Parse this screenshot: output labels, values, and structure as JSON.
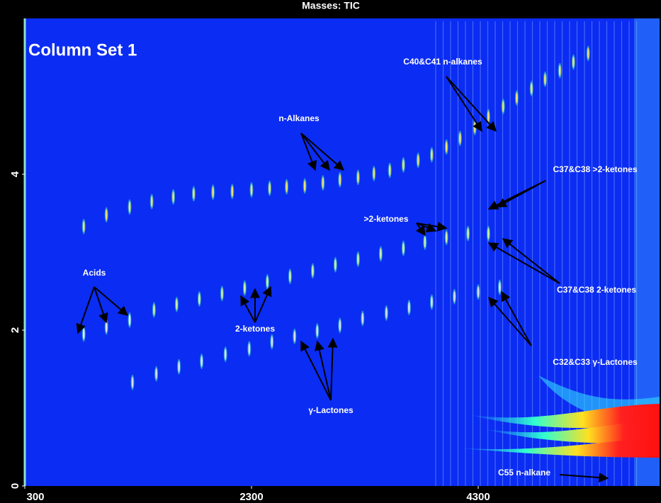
{
  "chart_data": {
    "type": "contour",
    "title": "Masses: TIC",
    "xlim": [
      300,
      5900
    ],
    "ylim": [
      0,
      6
    ],
    "xticks": [
      300,
      2300,
      4300
    ],
    "yticks": [
      0,
      2,
      4
    ],
    "background": "#0b2cf2",
    "series": [
      {
        "color": "#e8e070",
        "x": [
          820,
          1020,
          1225,
          1420,
          1610,
          1790,
          1960,
          2130,
          2300,
          2460,
          2610,
          2770,
          2930,
          3080,
          3240,
          3380,
          3520,
          3640,
          3770,
          3890,
          4020,
          4140,
          4270,
          4390,
          4520,
          4640,
          4770,
          4890,
          5020,
          5140,
          5270
        ],
        "values": [
          3.33,
          3.48,
          3.58,
          3.65,
          3.71,
          3.75,
          3.77,
          3.78,
          3.8,
          3.82,
          3.84,
          3.85,
          3.89,
          3.93,
          3.96,
          4.01,
          4.05,
          4.12,
          4.18,
          4.25,
          4.35,
          4.46,
          4.6,
          4.74,
          4.87,
          4.98,
          5.1,
          5.22,
          5.33,
          5.44,
          5.55
        ]
      },
      {
        "color": "#c8f0a0",
        "x": [
          1440,
          1640,
          1840,
          2040,
          2240,
          2440,
          2640,
          2840,
          3040,
          3240,
          3440,
          3640,
          3830,
          4020,
          4210,
          4390
        ],
        "values": [
          2.26,
          2.33,
          2.4,
          2.47,
          2.54,
          2.62,
          2.69,
          2.76,
          2.84,
          2.91,
          2.98,
          3.05,
          3.13,
          3.19,
          3.24,
          3.24
        ]
      },
      {
        "color": "#d0e0f0",
        "x": [
          1250,
          1460,
          1660,
          1860,
          2070,
          2280,
          2480,
          2680,
          2880,
          3080,
          3280,
          3490,
          3690,
          3890,
          4090,
          4300,
          4490
        ],
        "values": [
          1.33,
          1.44,
          1.53,
          1.6,
          1.69,
          1.76,
          1.85,
          1.92,
          1.99,
          2.06,
          2.15,
          2.22,
          2.29,
          2.36,
          2.43,
          2.49,
          2.55
        ]
      },
      {
        "color": "#e0e8f0",
        "x": [
          820,
          1020,
          1225
        ],
        "values": [
          1.95,
          2.04,
          2.13
        ]
      }
    ],
    "annotations": [
      "Column Set 1",
      "C40&C41 n-alkanes",
      "n-Alkanes",
      "C37&C38 >2-ketones",
      ">2-ketones",
      "Acids",
      "2-ketones",
      "C37&C38 2-ketones",
      "C32&C33 γ-Lactones",
      "γ-Lactones",
      "C55 n-alkane"
    ]
  }
}
